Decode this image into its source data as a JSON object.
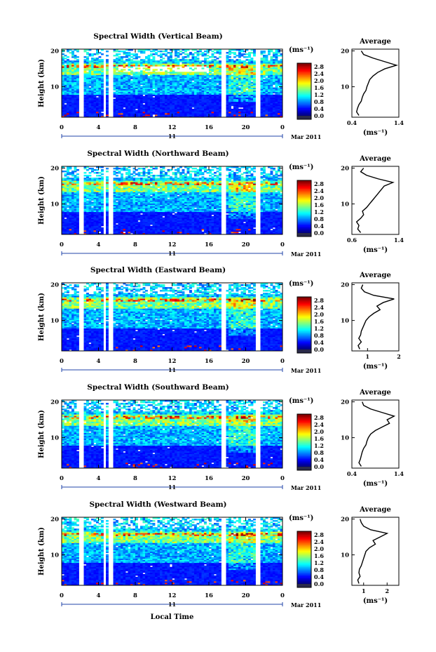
{
  "chart_data": [
    {
      "type": "heatmap",
      "title": "Spectral Width (Vertical Beam)",
      "ylabel": "Height (km)",
      "xlabel": "",
      "x_ticks": [
        "0",
        "4",
        "8",
        "12",
        "16",
        "20",
        "0"
      ],
      "y_ticks": [
        "20",
        "10"
      ],
      "xlim": [
        0,
        24
      ],
      "ylim": [
        1.5,
        20.5
      ],
      "date_label": "11",
      "month_label": "Mar 2011",
      "colorbar": {
        "unit": "(ms⁻¹)",
        "ticks": [
          "2.8",
          "2.4",
          "2.0",
          "1.6",
          "1.2",
          "0.8",
          "0.4",
          "0.0"
        ],
        "range": [
          0,
          3.0
        ]
      },
      "profile": {
        "title": "Average",
        "xlabel": "(ms⁻¹)",
        "x_ticks": [
          "0.4",
          "1.4"
        ],
        "xlim": [
          0.4,
          1.4
        ],
        "y_ticks": [
          "20",
          "10"
        ],
        "ylim": [
          1.5,
          20.5
        ],
        "heights": [
          2,
          3,
          4,
          5,
          6,
          7,
          8,
          9,
          10,
          11,
          12,
          13,
          14,
          15,
          16,
          17,
          18,
          19,
          20
        ],
        "values": [
          0.55,
          0.5,
          0.52,
          0.55,
          0.6,
          0.62,
          0.65,
          0.7,
          0.72,
          0.75,
          0.78,
          0.85,
          0.95,
          1.1,
          1.35,
          1.1,
          0.85,
          0.65,
          0.6
        ]
      }
    },
    {
      "type": "heatmap",
      "title": "Spectral Width (Northward Beam)",
      "ylabel": "Height (km)",
      "xlabel": "",
      "x_ticks": [
        "0",
        "4",
        "8",
        "12",
        "16",
        "20",
        "0"
      ],
      "y_ticks": [
        "20",
        "10"
      ],
      "xlim": [
        0,
        24
      ],
      "ylim": [
        1.5,
        20.5
      ],
      "date_label": "11",
      "month_label": "Mar 2011",
      "colorbar": {
        "unit": "(ms⁻¹)",
        "ticks": [
          "2.8",
          "2.4",
          "2.0",
          "1.6",
          "1.2",
          "0.8",
          "0.4",
          "0.0"
        ],
        "range": [
          0,
          3.0
        ]
      },
      "profile": {
        "title": "Average",
        "xlabel": "(ms⁻¹)",
        "x_ticks": [
          "0.6",
          "1.4"
        ],
        "xlim": [
          0.6,
          1.4
        ],
        "y_ticks": [
          "20",
          "10"
        ],
        "ylim": [
          1.5,
          20.5
        ],
        "heights": [
          2,
          3,
          4,
          5,
          6,
          7,
          8,
          9,
          10,
          11,
          12,
          13,
          14,
          15,
          16,
          17,
          18,
          19,
          20
        ],
        "values": [
          0.75,
          0.7,
          0.72,
          0.68,
          0.75,
          0.8,
          0.78,
          0.85,
          0.9,
          0.95,
          1.0,
          1.05,
          1.1,
          1.15,
          1.3,
          1.05,
          0.85,
          0.75,
          0.8
        ]
      }
    },
    {
      "type": "heatmap",
      "title": "Spectral Width (Eastward Beam)",
      "ylabel": "Height (km)",
      "xlabel": "",
      "x_ticks": [
        "0",
        "4",
        "8",
        "12",
        "16",
        "20",
        "0"
      ],
      "y_ticks": [
        "20",
        "10"
      ],
      "xlim": [
        0,
        24
      ],
      "ylim": [
        1.5,
        20.5
      ],
      "date_label": "11",
      "month_label": "Mar 2011",
      "colorbar": {
        "unit": "(ms⁻¹)",
        "ticks": [
          "2.8",
          "2.4",
          "2.0",
          "1.6",
          "1.2",
          "0.8",
          "0.4",
          "0.0"
        ],
        "range": [
          0,
          3.0
        ]
      },
      "profile": {
        "title": "Average",
        "xlabel": "(ms⁻¹)",
        "x_ticks": [
          "1",
          "2"
        ],
        "xlim": [
          0.5,
          2.0
        ],
        "y_ticks": [
          "20",
          "10"
        ],
        "ylim": [
          1.5,
          20.5
        ],
        "heights": [
          2,
          3,
          4,
          5,
          6,
          7,
          8,
          9,
          10,
          11,
          12,
          13,
          14,
          15,
          16,
          17,
          18,
          19,
          20
        ],
        "values": [
          0.75,
          0.7,
          0.8,
          0.72,
          0.78,
          0.8,
          0.85,
          0.9,
          0.95,
          1.05,
          1.2,
          1.4,
          1.3,
          1.5,
          1.85,
          1.2,
          0.9,
          0.8,
          0.85
        ]
      }
    },
    {
      "type": "heatmap",
      "title": "Spectral Width (Southward Beam)",
      "ylabel": "Height (km)",
      "xlabel": "",
      "x_ticks": [
        "0",
        "4",
        "8",
        "12",
        "16",
        "20",
        "0"
      ],
      "y_ticks": [
        "20",
        "10"
      ],
      "xlim": [
        0,
        24
      ],
      "ylim": [
        1.5,
        20.5
      ],
      "date_label": "11",
      "month_label": "Mar 2011",
      "colorbar": {
        "unit": "(ms⁻¹)",
        "ticks": [
          "2.8",
          "2.4",
          "2.0",
          "1.6",
          "1.2",
          "0.8",
          "0.4",
          "0.0"
        ],
        "range": [
          0,
          3.0
        ]
      },
      "profile": {
        "title": "Average",
        "xlabel": "(ms⁻¹)",
        "x_ticks": [
          "0.4",
          "1.4"
        ],
        "xlim": [
          0.4,
          1.4
        ],
        "y_ticks": [
          "20",
          "10"
        ],
        "ylim": [
          1.5,
          20.5
        ],
        "heights": [
          2,
          3,
          4,
          5,
          6,
          7,
          8,
          9,
          10,
          11,
          12,
          13,
          14,
          15,
          16,
          17,
          18,
          19,
          20
        ],
        "values": [
          0.6,
          0.55,
          0.58,
          0.6,
          0.62,
          0.65,
          0.7,
          0.72,
          0.75,
          0.8,
          0.9,
          1.05,
          1.2,
          1.15,
          1.3,
          1.05,
          0.8,
          0.65,
          0.62
        ]
      }
    },
    {
      "type": "heatmap",
      "title": "Spectral Width (Westward Beam)",
      "ylabel": "Height (km)",
      "xlabel": "Local Time",
      "x_ticks": [
        "0",
        "4",
        "8",
        "12",
        "16",
        "20",
        "0"
      ],
      "y_ticks": [
        "20",
        "10"
      ],
      "xlim": [
        0,
        24
      ],
      "ylim": [
        1.5,
        20.5
      ],
      "date_label": "11",
      "month_label": "Mar 2011",
      "colorbar": {
        "unit": "(ms⁻¹)",
        "ticks": [
          "2.8",
          "2.4",
          "2.0",
          "1.6",
          "1.2",
          "0.8",
          "0.4",
          "0.0"
        ],
        "range": [
          0,
          3.0
        ]
      },
      "profile": {
        "title": "Average",
        "xlabel": "(ms⁻¹)",
        "x_ticks": [
          "1",
          "2"
        ],
        "xlim": [
          0.5,
          2.5
        ],
        "y_ticks": [
          "20",
          "10"
        ],
        "ylim": [
          1.5,
          20.5
        ],
        "heights": [
          2,
          3,
          4,
          5,
          6,
          7,
          8,
          9,
          10,
          11,
          12,
          13,
          14,
          15,
          16,
          17,
          18,
          19,
          20
        ],
        "values": [
          0.8,
          0.75,
          0.85,
          0.8,
          0.82,
          0.9,
          0.95,
          1.0,
          1.05,
          1.1,
          1.25,
          1.5,
          1.4,
          1.7,
          2.0,
          1.3,
          1.0,
          0.9,
          0.85
        ]
      }
    }
  ]
}
